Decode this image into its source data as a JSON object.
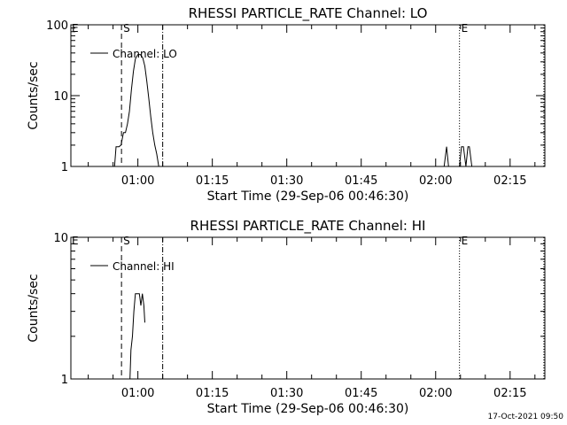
{
  "footer_timestamp": "17-Oct-2021 09:50",
  "chart_data": [
    {
      "type": "line",
      "title": "RHESSI PARTICLE_RATE Channel: LO",
      "xlabel": "Start Time (29-Sep-06 00:46:30)",
      "ylabel": "Counts/sec",
      "yscale": "log",
      "xlim_minutes": [
        -13.5,
        82
      ],
      "ylim": [
        1,
        100
      ],
      "yticks": [
        {
          "value": 1,
          "label": "1"
        },
        {
          "value": 10,
          "label": "10"
        },
        {
          "value": 100,
          "label": "100"
        }
      ],
      "xticks": [
        {
          "minute": 0,
          "label": "01:00"
        },
        {
          "minute": 15,
          "label": "01:15"
        },
        {
          "minute": 30,
          "label": "01:30"
        },
        {
          "minute": 45,
          "label": "01:45"
        },
        {
          "minute": 60,
          "label": "02:00"
        },
        {
          "minute": 75,
          "label": "02:15"
        }
      ],
      "legend": {
        "label": "Channel: LO",
        "position": "top-left"
      },
      "markers": [
        {
          "minute": -13.5,
          "label": "E",
          "style": "none"
        },
        {
          "minute": -3.3,
          "label": "S",
          "style": "dashed"
        },
        {
          "minute": 5,
          "label": "",
          "style": "dashdot"
        },
        {
          "minute": 64.8,
          "label": "E",
          "style": "dotted"
        },
        {
          "minute": 81.8,
          "label": "",
          "style": "dotted"
        }
      ],
      "series": [
        {
          "name": "Channel: LO",
          "segments": [
            [
              [
                -4.7,
                1
              ],
              [
                -4.4,
                1.9
              ],
              [
                -4.1,
                1.9
              ],
              [
                -3.8,
                1.9
              ],
              [
                -3.4,
                2
              ],
              [
                -2.9,
                3
              ],
              [
                -2.5,
                3
              ],
              [
                -2.1,
                4
              ],
              [
                -1.7,
                6
              ],
              [
                -1.3,
                12
              ],
              [
                -0.9,
                22
              ],
              [
                -0.5,
                33
              ],
              [
                0,
                38
              ],
              [
                0.5,
                38
              ],
              [
                1,
                34
              ],
              [
                1.4,
                26
              ],
              [
                1.8,
                16
              ],
              [
                2.2,
                9
              ],
              [
                2.6,
                5
              ],
              [
                3,
                3
              ],
              [
                3.4,
                2
              ],
              [
                3.8,
                1.5
              ],
              [
                4.2,
                1
              ]
            ],
            [
              [
                61.7,
                1
              ],
              [
                62.2,
                1.9
              ],
              [
                62.6,
                1
              ]
            ],
            [
              [
                64.8,
                1
              ],
              [
                65.2,
                1.9
              ],
              [
                65.6,
                1.9
              ],
              [
                66.1,
                1
              ],
              [
                66.5,
                1.9
              ],
              [
                66.8,
                1.9
              ],
              [
                67.3,
                1
              ]
            ]
          ]
        }
      ]
    },
    {
      "type": "line",
      "title": "RHESSI PARTICLE_RATE Channel: HI",
      "xlabel": "Start Time (29-Sep-06 00:46:30)",
      "ylabel": "Counts/sec",
      "yscale": "log",
      "xlim_minutes": [
        -13.5,
        82
      ],
      "ylim": [
        1,
        10
      ],
      "yticks": [
        {
          "value": 1,
          "label": "1"
        },
        {
          "value": 10,
          "label": "10"
        }
      ],
      "xticks": [
        {
          "minute": 0,
          "label": "01:00"
        },
        {
          "minute": 15,
          "label": "01:15"
        },
        {
          "minute": 30,
          "label": "01:30"
        },
        {
          "minute": 45,
          "label": "01:45"
        },
        {
          "minute": 60,
          "label": "02:00"
        },
        {
          "minute": 75,
          "label": "02:15"
        }
      ],
      "legend": {
        "label": "Channel: HI",
        "position": "top-left"
      },
      "markers": [
        {
          "minute": -13.5,
          "label": "E",
          "style": "none"
        },
        {
          "minute": -3.3,
          "label": "S",
          "style": "dashed"
        },
        {
          "minute": 5,
          "label": "",
          "style": "dashdot"
        },
        {
          "minute": 64.8,
          "label": "E",
          "style": "dotted"
        },
        {
          "minute": 81.8,
          "label": "",
          "style": "dotted"
        }
      ],
      "series": [
        {
          "name": "Channel: HI",
          "segments": [
            [
              [
                -1.6,
                1
              ],
              [
                -1.4,
                1.6
              ],
              [
                -1.1,
                2
              ],
              [
                -0.8,
                3
              ],
              [
                -0.5,
                4
              ],
              [
                0.3,
                4
              ],
              [
                0.6,
                3.3
              ],
              [
                0.9,
                4
              ],
              [
                1.2,
                3.3
              ],
              [
                1.4,
                2.5
              ]
            ]
          ]
        }
      ]
    }
  ]
}
